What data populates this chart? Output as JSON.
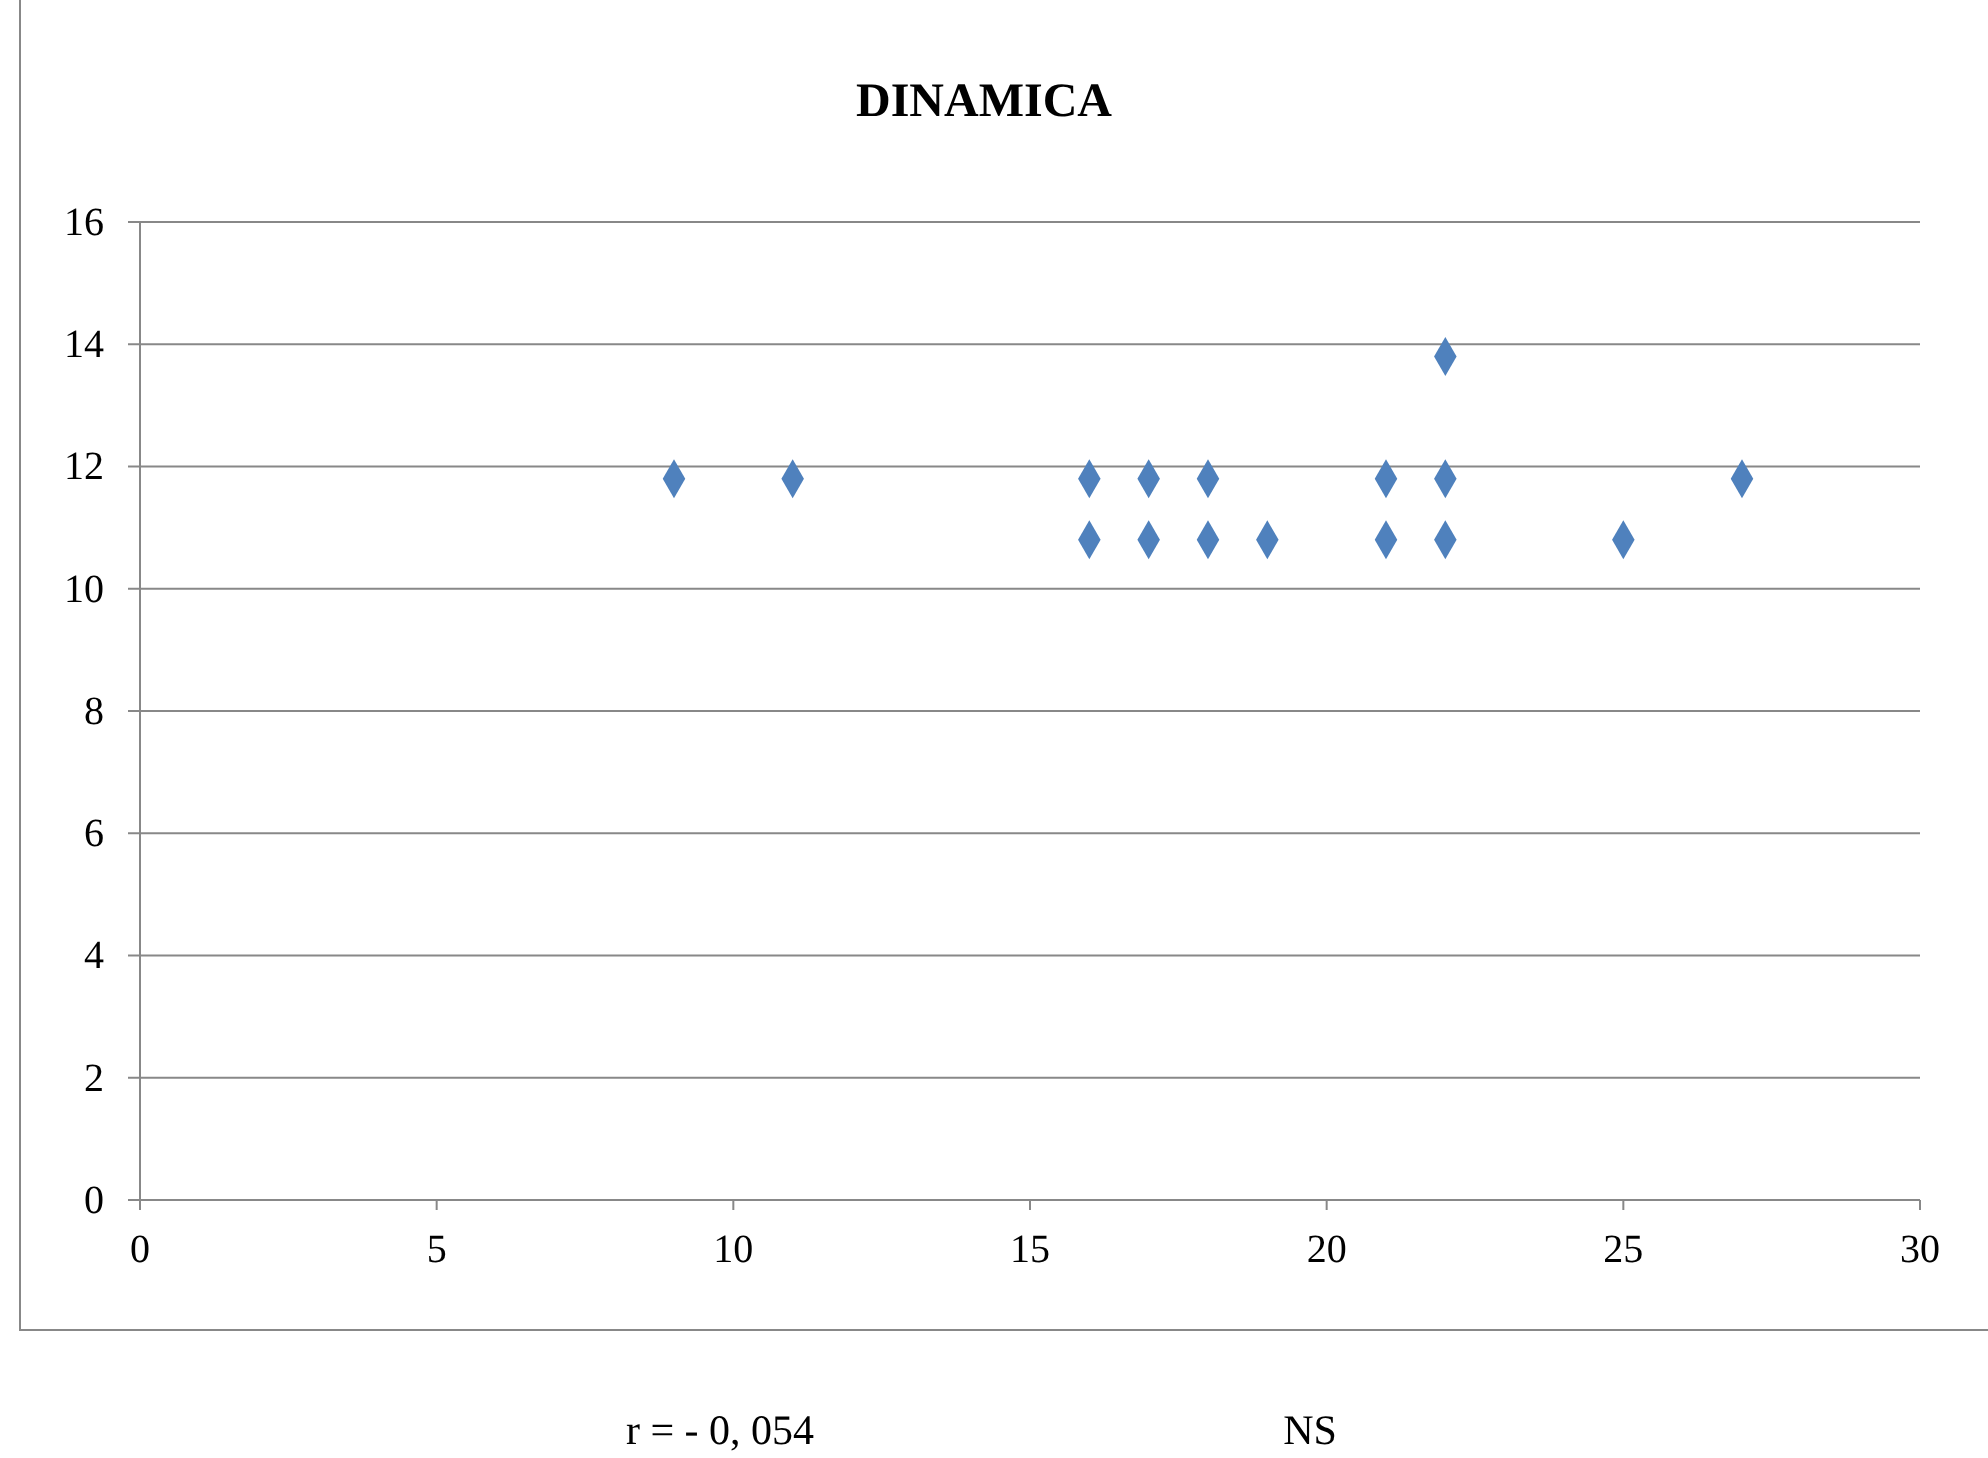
{
  "chart_data": {
    "type": "scatter",
    "title": "DINAMICA",
    "annotations": [
      "r = - 0, 054",
      "NS"
    ],
    "series": [
      {
        "color": "#4f81bd",
        "x": [
          9,
          11,
          16,
          16,
          17,
          17,
          18,
          18,
          19,
          21,
          21,
          22,
          22,
          22,
          25,
          27
        ],
        "values": [
          11.8,
          11.8,
          11.8,
          10.8,
          11.8,
          10.8,
          11.8,
          10.8,
          10.8,
          11.8,
          10.8,
          13.8,
          11.8,
          10.8,
          10.8,
          11.8
        ]
      }
    ],
    "xlim": [
      0,
      30
    ],
    "xticks": [
      0,
      5,
      10,
      15,
      20,
      25,
      30
    ],
    "ylim": [
      0,
      16
    ],
    "yticks": [
      0,
      2,
      4,
      6,
      8,
      10,
      12,
      14,
      16
    ],
    "grid": "y",
    "marker": "diamond"
  }
}
